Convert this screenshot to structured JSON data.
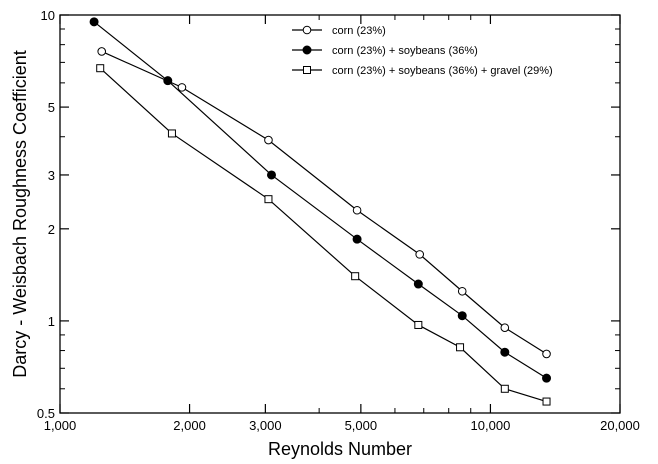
{
  "chart_data": {
    "type": "line",
    "title": "",
    "xlabel": "Reynolds Number",
    "ylabel": "Darcy - Weisbach Roughness Coefficient",
    "x_scale": "log",
    "y_scale": "log",
    "xlim": [
      1000,
      20000
    ],
    "ylim": [
      0.5,
      10
    ],
    "x_ticks": [
      1000,
      2000,
      3000,
      5000,
      10000,
      20000
    ],
    "x_tick_labels": [
      "1,000",
      "2,000",
      "3,000",
      "5,000",
      "10,000",
      "20,000"
    ],
    "y_ticks": [
      0.5,
      1,
      2,
      3,
      5,
      10
    ],
    "y_tick_labels": [
      "0.5",
      "1",
      "2",
      "3",
      "5",
      "10"
    ],
    "grid": false,
    "legend_position": "top-right",
    "series": [
      {
        "name": "corn (23%)",
        "marker": "open-circle",
        "x": [
          1250,
          1920,
          3050,
          4900,
          6850,
          8600,
          10800,
          13500
        ],
        "y": [
          7.6,
          5.8,
          3.9,
          2.3,
          1.65,
          1.25,
          0.95,
          0.78
        ]
      },
      {
        "name": "corn (23%) + soybeans (36%)",
        "marker": "filled-circle",
        "x": [
          1200,
          1780,
          3100,
          4900,
          6800,
          8600,
          10800,
          13500
        ],
        "y": [
          9.5,
          6.1,
          3.0,
          1.85,
          1.32,
          1.04,
          0.79,
          0.65
        ]
      },
      {
        "name": "corn (23%) + soybeans (36%) + gravel (29%)",
        "marker": "open-square",
        "x": [
          1240,
          1820,
          3050,
          4850,
          6800,
          8500,
          10800,
          13500
        ],
        "y": [
          6.7,
          4.1,
          2.5,
          1.4,
          0.97,
          0.82,
          0.6,
          0.545
        ]
      }
    ]
  }
}
